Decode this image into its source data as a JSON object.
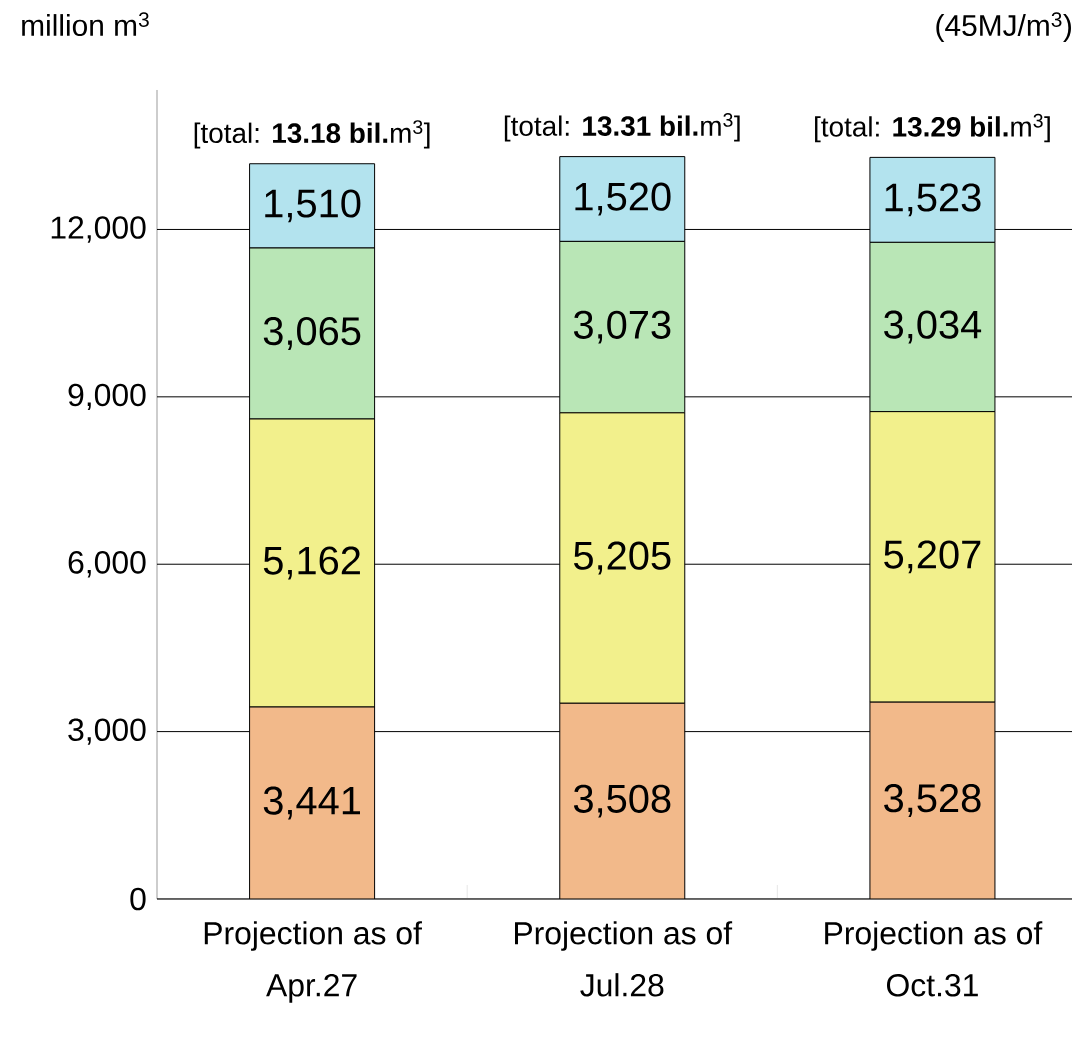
{
  "chart_data": {
    "type": "bar",
    "stacked": true,
    "ylabel": "million m$^{3}$",
    "categories": [
      "Projection as of Apr.27",
      "Projection as of Jul.28",
      "Projection as of Oct.31"
    ],
    "series": [
      {
        "color": "#f2b98a",
        "values": [
          3441,
          3508,
          3528
        ],
        "value_labels": [
          "3,441",
          "3,508",
          "3,528"
        ]
      },
      {
        "color": "#f2f08c",
        "values": [
          5162,
          5205,
          5207
        ],
        "value_labels": [
          "5,162",
          "5,205",
          "5,207"
        ]
      },
      {
        "color": "#b9e6b6",
        "values": [
          3065,
          3073,
          3034
        ],
        "value_labels": [
          "3,065",
          "3,073",
          "3,034"
        ]
      },
      {
        "color": "#b3e3ee",
        "values": [
          1510,
          1520,
          1523
        ],
        "value_labels": [
          "1,510",
          "1,520",
          "1,523"
        ]
      }
    ],
    "totals": [
      "[total: **13.18 bil.**m$^{3}$]",
      "[total: **13.31 bil.**m$^{3}$]",
      "[total: **13.29 bil.**m$^{3}$]"
    ],
    "ylim": [
      0,
      14500
    ],
    "yticks": [
      {
        "value": 0,
        "label": "0"
      },
      {
        "value": 3000,
        "label": "3,000"
      },
      {
        "value": 6000,
        "label": "6,000"
      },
      {
        "value": 9000,
        "label": "9,000"
      },
      {
        "value": 12000,
        "label": "12,000"
      }
    ],
    "grid": "y",
    "annotations": [
      "(45MJ/m$^{3}$)"
    ]
  }
}
